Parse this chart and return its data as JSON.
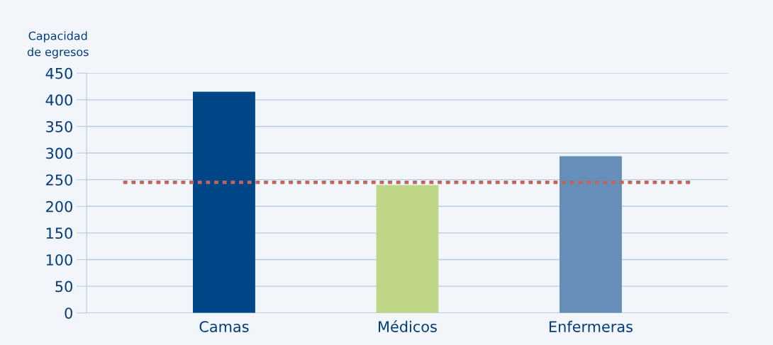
{
  "chart_data": {
    "type": "bar",
    "ylabel": "Capacidad\nde egresos",
    "categories": [
      "Camas",
      "Médicos",
      "Enfermeras"
    ],
    "values": [
      415,
      240,
      294
    ],
    "colors": [
      "#004586",
      "#bfd686",
      "#658fb8"
    ],
    "ylim": [
      0,
      450
    ],
    "yticks": [
      0,
      50,
      100,
      150,
      200,
      250,
      300,
      350,
      400,
      450
    ],
    "grid": "y",
    "ref_lines": [
      {
        "axis": "y",
        "value": 245,
        "color": "#c0645f",
        "line_style": "dotted"
      }
    ]
  }
}
